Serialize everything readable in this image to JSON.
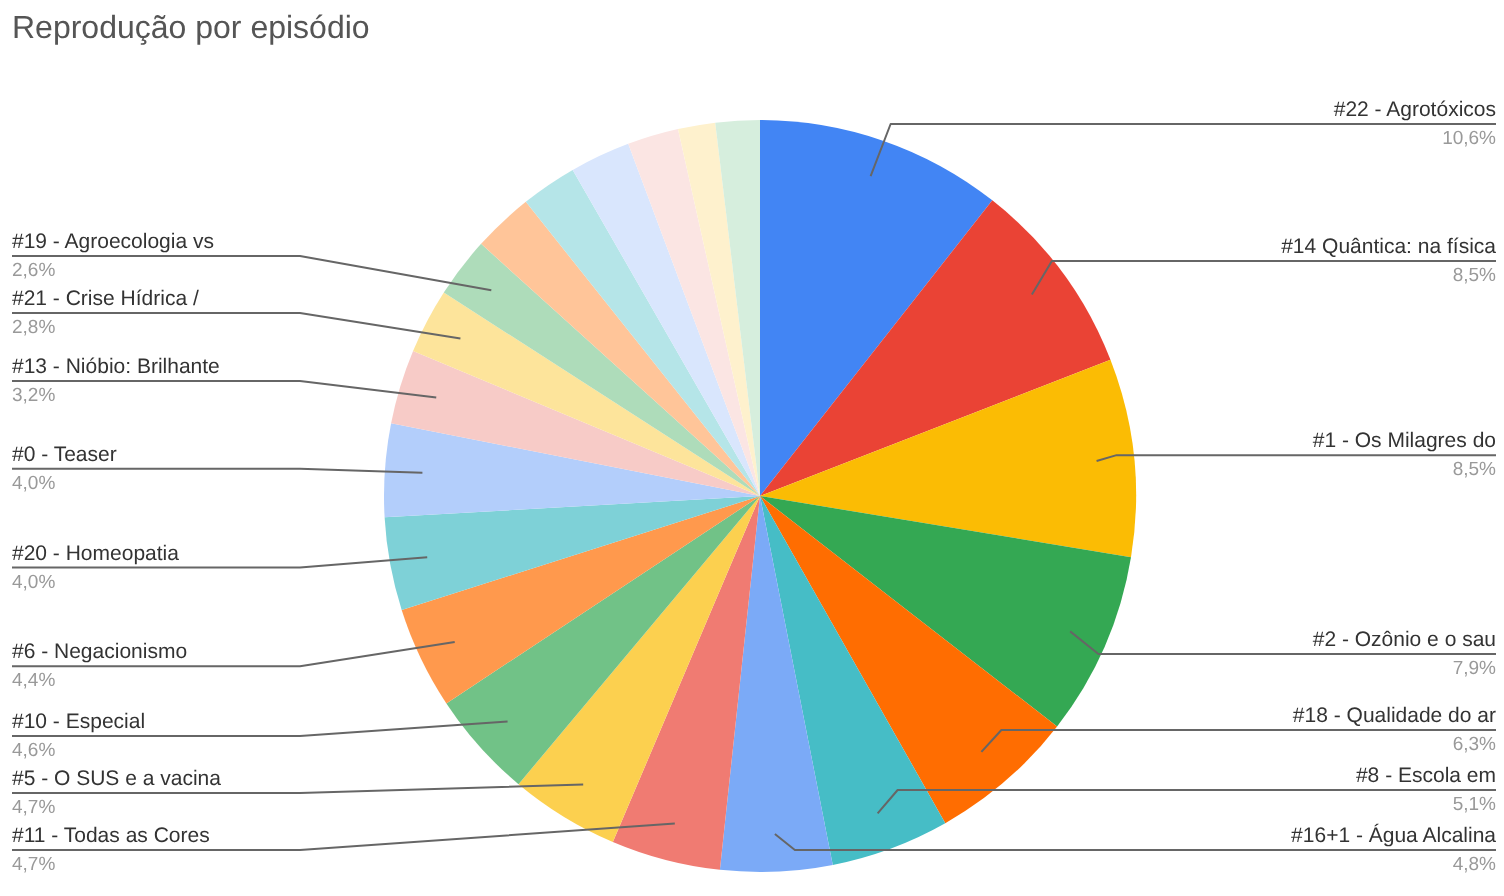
{
  "chart_data": {
    "type": "pie",
    "title": "Reprodução por episódio",
    "categories": [
      "#22 - Agrotóxicos",
      "#14 Quântica: na física",
      "#1 - Os Milagres do",
      "#2 - Ozônio e o sau",
      "#18 - Qualidade do ar",
      "#8 - Escola em",
      "#16+1 - Água Alcalina",
      "#11 - Todas as Cores",
      "#5 - O SUS e a vacina",
      "#10 - Especial",
      "#6 - Negacionismo",
      "#20 - Homeopatia",
      "#0 - Teaser",
      "#13 - Nióbio: Brilhante",
      "#21 - Crise Hídrica /",
      "#19 - Agroecologia vs",
      null,
      null,
      null,
      null,
      null,
      null
    ],
    "values": [
      10.6,
      8.5,
      8.5,
      7.9,
      6.3,
      5.1,
      4.8,
      4.7,
      4.7,
      4.6,
      4.4,
      4.0,
      4.0,
      3.2,
      2.8,
      2.6,
      2.6,
      2.4,
      2.6,
      2.2,
      1.6,
      1.9
    ],
    "value_labels": [
      "10,6%",
      "8,5%",
      "8,5%",
      "7,9%",
      "6,3%",
      "5,1%",
      "4,8%",
      "4,7%",
      "4,7%",
      "4,6%",
      "4,4%",
      "4,0%",
      "4,0%",
      "3,2%",
      "2,8%",
      "2,6%",
      null,
      null,
      null,
      null,
      null,
      null
    ],
    "colors": [
      "#4285f4",
      "#ea4335",
      "#fbbc04",
      "#34a853",
      "#ff6d01",
      "#46bdc6",
      "#7baaf7",
      "#f07b72",
      "#fcd04f",
      "#71c287",
      "#ff994d",
      "#7ed1d7",
      "#b3cefb",
      "#f7cbc7",
      "#fde49b",
      "#aedcba",
      "#ffc599",
      "#b5e5e8",
      "#d9e6fd",
      "#fbe5e3",
      "#fef1cd",
      "#d6eedd"
    ],
    "legend": false,
    "data_labels": false
  }
}
